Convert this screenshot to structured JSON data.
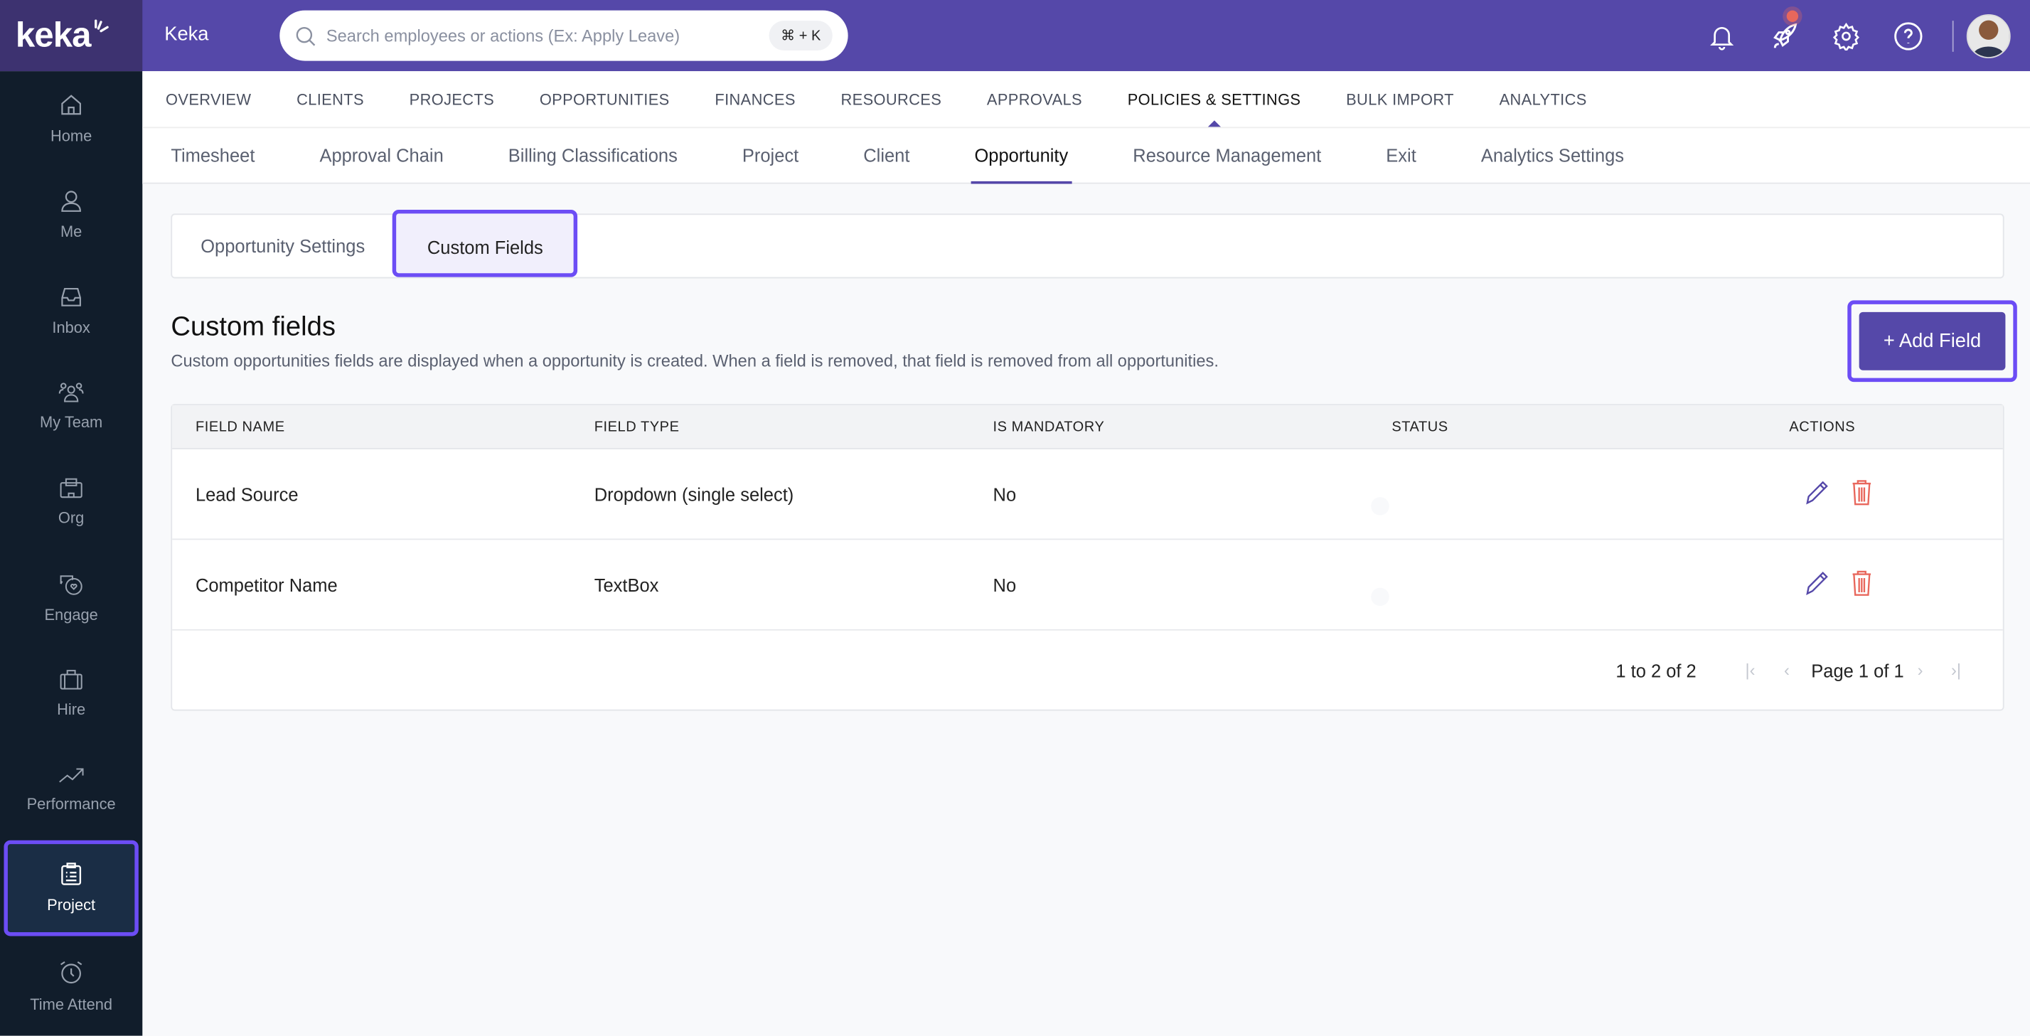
{
  "brand": {
    "logo": "keka",
    "app_title": "Keka"
  },
  "search": {
    "placeholder": "Search employees or actions (Ex: Apply Leave)",
    "shortcut": "⌘ + K"
  },
  "header_icons": [
    "bell-icon",
    "rocket-icon",
    "gear-icon",
    "help-icon"
  ],
  "sidebar": {
    "items": [
      {
        "label": "Home",
        "icon": "home-icon"
      },
      {
        "label": "Me",
        "icon": "user-icon"
      },
      {
        "label": "Inbox",
        "icon": "inbox-icon"
      },
      {
        "label": "My Team",
        "icon": "team-icon"
      },
      {
        "label": "Org",
        "icon": "building-icon"
      },
      {
        "label": "Engage",
        "icon": "chat-heart-icon"
      },
      {
        "label": "Hire",
        "icon": "briefcase-icon"
      },
      {
        "label": "Performance",
        "icon": "trend-icon"
      },
      {
        "label": "Project",
        "icon": "clipboard-icon",
        "active": true
      },
      {
        "label": "Time Attend",
        "icon": "alarm-clock-icon"
      }
    ]
  },
  "nav": {
    "items": [
      "OVERVIEW",
      "CLIENTS",
      "PROJECTS",
      "OPPORTUNITIES",
      "FINANCES",
      "RESOURCES",
      "APPROVALS",
      "POLICIES & SETTINGS",
      "BULK IMPORT",
      "ANALYTICS"
    ],
    "active": "POLICIES & SETTINGS"
  },
  "subnav": {
    "items": [
      "Timesheet",
      "Approval Chain",
      "Billing Classifications",
      "Project",
      "Client",
      "Opportunity",
      "Resource Management",
      "Exit",
      "Analytics Settings"
    ],
    "active": "Opportunity"
  },
  "tabs": {
    "items": [
      "Opportunity Settings",
      "Custom Fields"
    ],
    "active": "Custom Fields"
  },
  "section": {
    "title": "Custom fields",
    "description": "Custom opportunities fields are displayed when a opportunity is created. When a field is removed, that field is removed from all opportunities.",
    "add_button": "+ Add Field"
  },
  "table": {
    "columns": [
      "FIELD NAME",
      "FIELD TYPE",
      "IS MANDATORY",
      "STATUS",
      "ACTIONS"
    ],
    "rows": [
      {
        "name": "Lead Source",
        "type": "Dropdown (single select)",
        "mandatory": "No",
        "status_on": true
      },
      {
        "name": "Competitor Name",
        "type": "TextBox",
        "mandatory": "No",
        "status_on": true
      }
    ],
    "range": "1 to 2 of 2",
    "page": "Page 1 of 1"
  },
  "colors": {
    "header": "#5548a9",
    "sidebar": "#111d2b",
    "accent": "#5548a9",
    "highlight": "#6c4df5",
    "delete": "#e8675c"
  }
}
